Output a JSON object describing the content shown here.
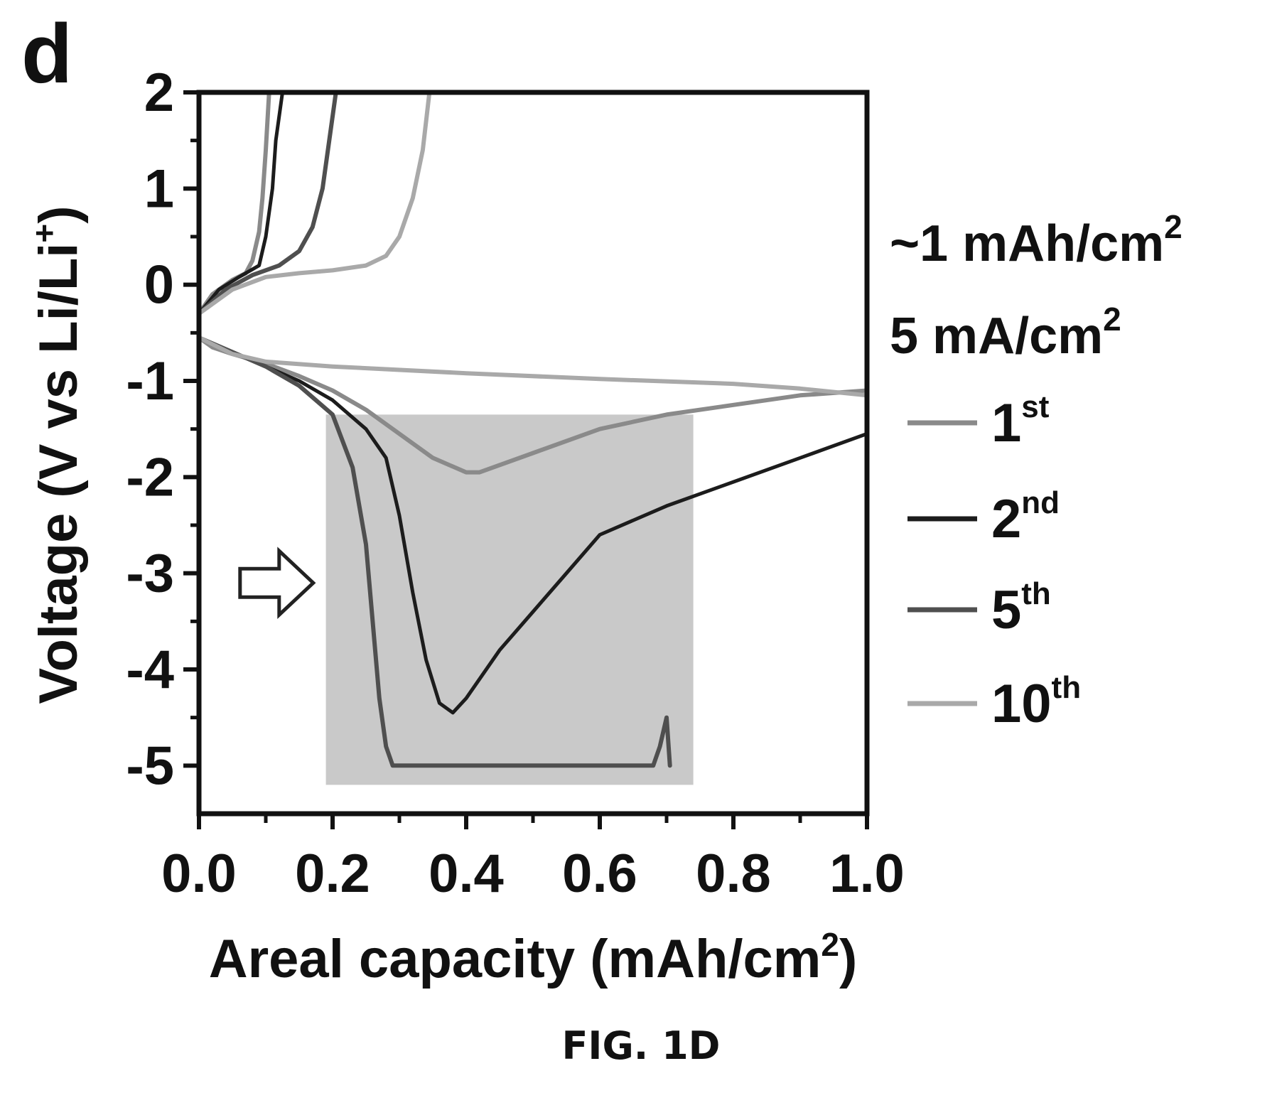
{
  "panel_label": "d",
  "figure_caption": "FIG. 1D",
  "conditions": {
    "capacity": "~1 mAh/cm",
    "capacity_sup": "2",
    "current": "5 mA/cm",
    "current_sup": "2"
  },
  "colors": {
    "axis": "#111111",
    "highlight_box": "#c9c9c9",
    "cycle_1": "#8a8a8a",
    "cycle_2": "#1c1c1c",
    "cycle_5": "#4f4f4f",
    "cycle_10": "#a9a9a9"
  },
  "chart_data": {
    "type": "line",
    "xlabel": "Areal capacity (mAh/cm",
    "xlabel_sup": "2",
    "xlabel_end": ")",
    "ylabel": "Voltage (V vs Li/Li",
    "ylabel_sup": "+",
    "ylabel_end": ")",
    "xlim": [
      0.0,
      1.0
    ],
    "ylim": [
      -5.5,
      2.0
    ],
    "x_ticks": [
      "0.0",
      "0.2",
      "0.4",
      "0.6",
      "0.8",
      "1.0"
    ],
    "y_ticks": [
      "2",
      "1",
      "0",
      "-1",
      "-2",
      "-3",
      "-4",
      "-5"
    ],
    "grid": false,
    "legend_position": "right",
    "highlight_region": {
      "x": [
        0.19,
        0.74
      ],
      "y": [
        -5.2,
        -1.35
      ]
    },
    "annotations": [
      {
        "type": "arrow",
        "direction": "right",
        "x": 0.12,
        "y": -3.1
      }
    ],
    "series": [
      {
        "name": "1",
        "sup": "st",
        "color_key": "cycle_1",
        "charge": [
          [
            0.0,
            -0.3
          ],
          [
            0.02,
            -0.1
          ],
          [
            0.05,
            0.05
          ],
          [
            0.07,
            0.12
          ],
          [
            0.08,
            0.25
          ],
          [
            0.09,
            0.55
          ],
          [
            0.095,
            0.9
          ],
          [
            0.1,
            1.4
          ],
          [
            0.105,
            2.0
          ]
        ],
        "discharge": [
          [
            0.0,
            -0.55
          ],
          [
            0.02,
            -0.65
          ],
          [
            0.05,
            -0.72
          ],
          [
            0.1,
            -0.82
          ],
          [
            0.15,
            -0.95
          ],
          [
            0.2,
            -1.1
          ],
          [
            0.25,
            -1.3
          ],
          [
            0.3,
            -1.55
          ],
          [
            0.35,
            -1.8
          ],
          [
            0.4,
            -1.95
          ],
          [
            0.42,
            -1.95
          ],
          [
            0.5,
            -1.75
          ],
          [
            0.6,
            -1.5
          ],
          [
            0.7,
            -1.35
          ],
          [
            0.8,
            -1.25
          ],
          [
            0.9,
            -1.15
          ],
          [
            1.0,
            -1.1
          ]
        ]
      },
      {
        "name": "2",
        "sup": "nd",
        "color_key": "cycle_2",
        "charge": [
          [
            0.0,
            -0.3
          ],
          [
            0.03,
            -0.05
          ],
          [
            0.06,
            0.08
          ],
          [
            0.09,
            0.2
          ],
          [
            0.1,
            0.5
          ],
          [
            0.11,
            1.0
          ],
          [
            0.115,
            1.5
          ],
          [
            0.125,
            2.0
          ]
        ],
        "discharge": [
          [
            0.0,
            -0.55
          ],
          [
            0.05,
            -0.7
          ],
          [
            0.1,
            -0.85
          ],
          [
            0.15,
            -1.0
          ],
          [
            0.2,
            -1.2
          ],
          [
            0.25,
            -1.5
          ],
          [
            0.28,
            -1.8
          ],
          [
            0.3,
            -2.4
          ],
          [
            0.32,
            -3.2
          ],
          [
            0.34,
            -3.9
          ],
          [
            0.36,
            -4.35
          ],
          [
            0.38,
            -4.45
          ],
          [
            0.4,
            -4.3
          ],
          [
            0.45,
            -3.8
          ],
          [
            0.5,
            -3.4
          ],
          [
            0.55,
            -3.0
          ],
          [
            0.6,
            -2.6
          ],
          [
            0.7,
            -2.3
          ],
          [
            0.8,
            -2.05
          ],
          [
            0.9,
            -1.8
          ],
          [
            1.0,
            -1.55
          ]
        ]
      },
      {
        "name": "5",
        "sup": "th",
        "color_key": "cycle_5",
        "charge": [
          [
            0.0,
            -0.3
          ],
          [
            0.04,
            -0.05
          ],
          [
            0.08,
            0.1
          ],
          [
            0.12,
            0.2
          ],
          [
            0.15,
            0.35
          ],
          [
            0.17,
            0.6
          ],
          [
            0.185,
            1.0
          ],
          [
            0.195,
            1.5
          ],
          [
            0.205,
            2.0
          ]
        ],
        "discharge": [
          [
            0.0,
            -0.55
          ],
          [
            0.05,
            -0.7
          ],
          [
            0.1,
            -0.85
          ],
          [
            0.15,
            -1.05
          ],
          [
            0.2,
            -1.35
          ],
          [
            0.23,
            -1.9
          ],
          [
            0.25,
            -2.7
          ],
          [
            0.26,
            -3.5
          ],
          [
            0.27,
            -4.3
          ],
          [
            0.28,
            -4.8
          ],
          [
            0.29,
            -5.0
          ],
          [
            0.4,
            -5.0
          ],
          [
            0.5,
            -5.0
          ],
          [
            0.6,
            -5.0
          ],
          [
            0.68,
            -5.0
          ],
          [
            0.69,
            -4.8
          ],
          [
            0.7,
            -4.5
          ],
          [
            0.705,
            -5.0
          ]
        ]
      },
      {
        "name": "10",
        "sup": "th",
        "color_key": "cycle_10",
        "charge": [
          [
            0.0,
            -0.3
          ],
          [
            0.05,
            -0.05
          ],
          [
            0.1,
            0.08
          ],
          [
            0.15,
            0.12
          ],
          [
            0.2,
            0.15
          ],
          [
            0.25,
            0.2
          ],
          [
            0.28,
            0.3
          ],
          [
            0.3,
            0.5
          ],
          [
            0.32,
            0.9
          ],
          [
            0.335,
            1.4
          ],
          [
            0.345,
            2.0
          ]
        ],
        "discharge": [
          [
            0.0,
            -0.55
          ],
          [
            0.05,
            -0.72
          ],
          [
            0.1,
            -0.8
          ],
          [
            0.2,
            -0.85
          ],
          [
            0.4,
            -0.92
          ],
          [
            0.6,
            -0.98
          ],
          [
            0.8,
            -1.03
          ],
          [
            0.9,
            -1.08
          ],
          [
            1.0,
            -1.15
          ]
        ]
      }
    ]
  }
}
